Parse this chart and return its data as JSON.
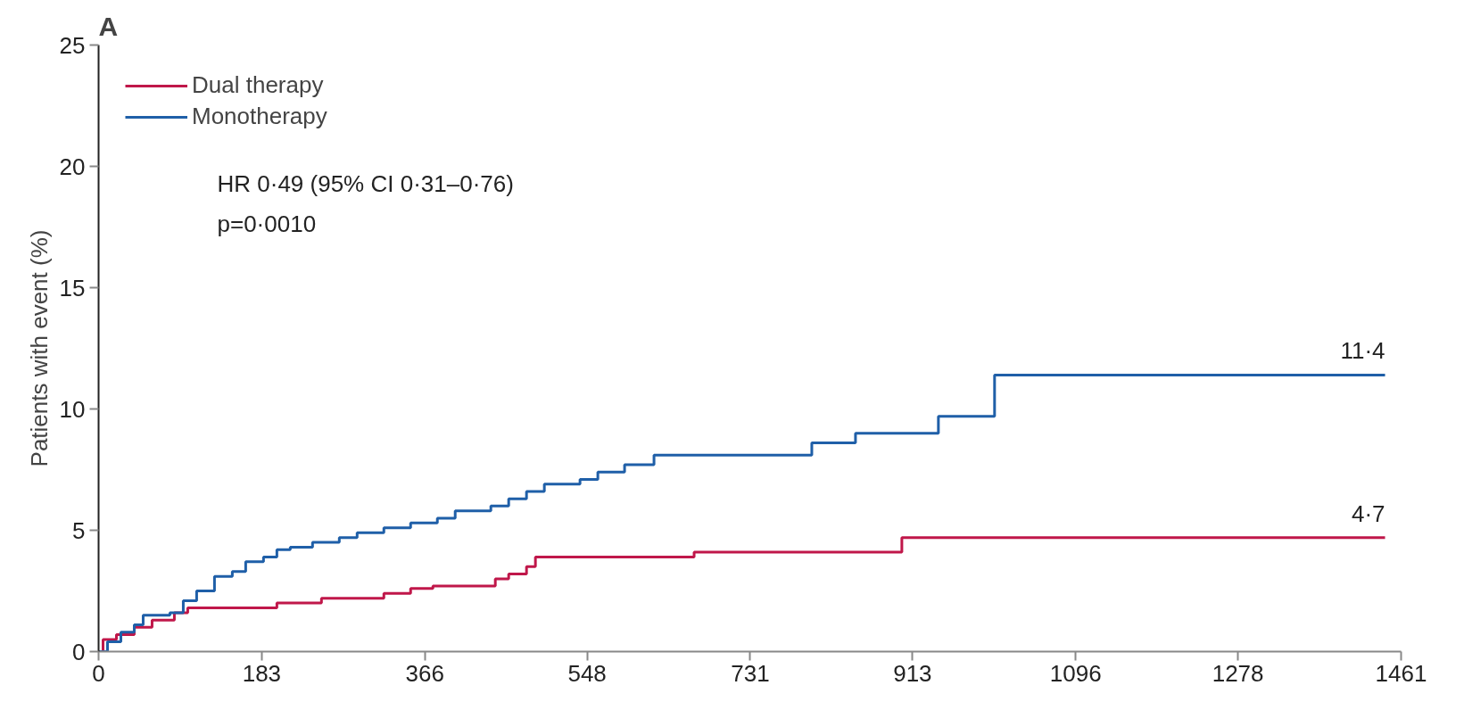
{
  "chart_data": {
    "type": "step",
    "title": "A",
    "ylabel": "Patients with event (%)",
    "xlim": [
      0,
      1461
    ],
    "xticks": [
      0,
      183,
      366,
      548,
      731,
      913,
      1096,
      1278,
      1461
    ],
    "ylim": [
      0,
      25
    ],
    "yticks": [
      0,
      5,
      10,
      15,
      20,
      25
    ],
    "grid": false,
    "legend": "top left",
    "series": [
      {
        "name": "Dual therapy",
        "color": "#c0174a",
        "x": [
          0,
          5,
          20,
          40,
          60,
          85,
          100,
          200,
          250,
          320,
          350,
          375,
          445,
          460,
          480,
          490,
          668,
          901,
          1443
        ],
        "values": [
          0,
          0.5,
          0.7,
          1.0,
          1.3,
          1.6,
          1.8,
          2.0,
          2.2,
          2.4,
          2.6,
          2.7,
          3.0,
          3.2,
          3.5,
          3.9,
          4.1,
          4.7,
          4.7
        ]
      },
      {
        "name": "Monotherapy",
        "color": "#1f5fa8",
        "x": [
          0,
          10,
          25,
          40,
          50,
          80,
          95,
          110,
          130,
          150,
          165,
          185,
          200,
          215,
          240,
          270,
          290,
          320,
          350,
          380,
          400,
          440,
          460,
          480,
          500,
          540,
          560,
          590,
          623,
          800,
          849,
          942,
          1005,
          1443
        ],
        "values": [
          0,
          0.4,
          0.8,
          1.1,
          1.5,
          1.6,
          2.1,
          2.5,
          3.1,
          3.3,
          3.7,
          3.9,
          4.2,
          4.3,
          4.5,
          4.7,
          4.9,
          5.1,
          5.3,
          5.5,
          5.8,
          6.0,
          6.3,
          6.6,
          6.9,
          7.1,
          7.4,
          7.7,
          8.1,
          8.6,
          9.0,
          9.7,
          11.4,
          11.4
        ]
      }
    ],
    "annotations": [
      "HR 0·49 (95% CI 0·31–0·76)",
      "p=0·0010",
      {
        "text": "11·4",
        "x": 1443,
        "y": 11.4
      },
      {
        "text": "4·7",
        "x": 1443,
        "y": 4.7
      }
    ]
  }
}
